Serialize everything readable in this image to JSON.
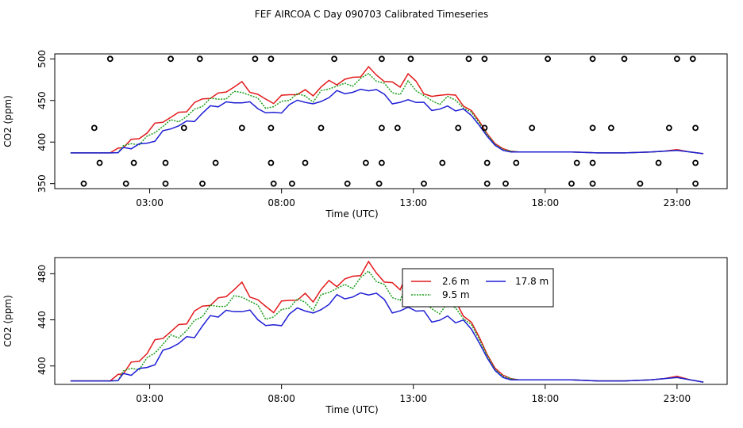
{
  "title": "FEF AIRCOA C  Day 090703  Calibrated Timeseries",
  "series_meta": [
    {
      "name": "2.6 m",
      "color": "#e31a1c"
    },
    {
      "name": "9.5 m",
      "color": "#1a9e1a"
    },
    {
      "name": "17.8 m",
      "color": "#1f1fd6"
    }
  ],
  "chart_data": [
    {
      "type": "line",
      "ylabel": "CO2 (ppm)",
      "xlabel": "Time (UTC)",
      "xlim": [
        -0.6,
        24.9
      ],
      "ylim": [
        344,
        506
      ],
      "x_ticks": [
        3,
        8,
        13,
        18,
        23
      ],
      "x_tick_labels": [
        "03:00",
        "08:00",
        "13:00",
        "18:00",
        "23:00"
      ],
      "y_ticks": [
        350,
        400,
        450,
        500
      ],
      "y_tick_labels": [
        "350",
        "400",
        "450",
        "500"
      ],
      "markers": {
        "name": "flag points",
        "points": [
          [
            1.5,
            500
          ],
          [
            3.8,
            500
          ],
          [
            4.9,
            500
          ],
          [
            7.0,
            500
          ],
          [
            7.6,
            500
          ],
          [
            10.0,
            500
          ],
          [
            11.8,
            500
          ],
          [
            12.9,
            500
          ],
          [
            15.1,
            500
          ],
          [
            15.7,
            500
          ],
          [
            18.1,
            500
          ],
          [
            19.8,
            500
          ],
          [
            21.0,
            500
          ],
          [
            23.0,
            500
          ],
          [
            23.6,
            500
          ],
          [
            0.9,
            417
          ],
          [
            4.3,
            417
          ],
          [
            6.5,
            417
          ],
          [
            7.6,
            417
          ],
          [
            9.5,
            417
          ],
          [
            11.8,
            417
          ],
          [
            12.4,
            417
          ],
          [
            14.7,
            417
          ],
          [
            15.7,
            417
          ],
          [
            17.5,
            417
          ],
          [
            19.8,
            417
          ],
          [
            20.5,
            417
          ],
          [
            22.7,
            417
          ],
          [
            23.7,
            417
          ],
          [
            1.1,
            375
          ],
          [
            2.4,
            375
          ],
          [
            3.6,
            375
          ],
          [
            5.5,
            375
          ],
          [
            7.6,
            375
          ],
          [
            8.9,
            375
          ],
          [
            11.2,
            375
          ],
          [
            11.8,
            375
          ],
          [
            14.1,
            375
          ],
          [
            15.8,
            375
          ],
          [
            16.9,
            375
          ],
          [
            19.2,
            375
          ],
          [
            19.8,
            375
          ],
          [
            22.3,
            375
          ],
          [
            23.7,
            375
          ],
          [
            0.5,
            350
          ],
          [
            2.1,
            350
          ],
          [
            3.6,
            350
          ],
          [
            5.0,
            350
          ],
          [
            7.7,
            350
          ],
          [
            8.4,
            350
          ],
          [
            10.5,
            350
          ],
          [
            11.7,
            350
          ],
          [
            13.4,
            350
          ],
          [
            15.8,
            350
          ],
          [
            16.5,
            350
          ],
          [
            19.0,
            350
          ],
          [
            19.8,
            350
          ],
          [
            21.6,
            350
          ],
          [
            23.7,
            350
          ]
        ]
      }
    },
    {
      "type": "line",
      "ylabel": "CO2 (ppm)",
      "xlabel": "Time (UTC)",
      "xlim": [
        -0.6,
        24.9
      ],
      "ylim": [
        384,
        494
      ],
      "x_ticks": [
        3,
        8,
        13,
        18,
        23
      ],
      "x_tick_labels": [
        "03:00",
        "08:00",
        "13:00",
        "18:00",
        "23:00"
      ],
      "y_ticks": [
        400,
        440,
        480
      ],
      "y_tick_labels": [
        "400",
        "440",
        "480"
      ],
      "legend": {
        "position": "top-right",
        "entries": [
          "2.6 m",
          "9.5 m",
          "17.8 m"
        ]
      }
    }
  ],
  "base_series": {
    "x": [
      0,
      0.5,
      1,
      1.5,
      1.8,
      2,
      2.3,
      2.6,
      2.9,
      3.2,
      3.5,
      3.8,
      4.1,
      4.4,
      4.7,
      5,
      5.3,
      5.6,
      5.9,
      6.2,
      6.5,
      6.8,
      7.1,
      7.4,
      7.7,
      8,
      8.3,
      8.6,
      8.9,
      9.2,
      9.5,
      9.8,
      10.1,
      10.4,
      10.7,
      11,
      11.3,
      11.6,
      11.9,
      12.2,
      12.5,
      12.8,
      13.1,
      13.4,
      13.7,
      14,
      14.3,
      14.6,
      14.9,
      15.2,
      15.5,
      15.8,
      16.1,
      16.4,
      16.7,
      17,
      17.3,
      17.6,
      18,
      19,
      20,
      21,
      22,
      22.5,
      23,
      23.5,
      24
    ],
    "s1": [
      387,
      387,
      387,
      387,
      390,
      395,
      402,
      407,
      412,
      418,
      425,
      430,
      436,
      440,
      444,
      450,
      455,
      458,
      463,
      466,
      468,
      462,
      458,
      452,
      449,
      452,
      456,
      460,
      462,
      458,
      465,
      470,
      472,
      476,
      478,
      480,
      486,
      481,
      476,
      471,
      468,
      480,
      470,
      462,
      455,
      456,
      458,
      452,
      445,
      438,
      425,
      410,
      398,
      392,
      389,
      388,
      388,
      388,
      388,
      388,
      387,
      387,
      388,
      389,
      391,
      388,
      386
    ],
    "s2": [
      387,
      387,
      387,
      387,
      389,
      392,
      397,
      401,
      406,
      412,
      418,
      423,
      428,
      432,
      438,
      444,
      449,
      452,
      456,
      459,
      460,
      455,
      450,
      445,
      443,
      447,
      451,
      455,
      457,
      452,
      459,
      464,
      466,
      469,
      472,
      476,
      480,
      474,
      468,
      462,
      460,
      470,
      462,
      455,
      449,
      450,
      453,
      448,
      442,
      436,
      423,
      409,
      397,
      391,
      389,
      388,
      388,
      388,
      388,
      388,
      387,
      387,
      388,
      389,
      390,
      388,
      386
    ],
    "s3": [
      387,
      387,
      387,
      387,
      388,
      390,
      393,
      396,
      400,
      405,
      410,
      415,
      420,
      424,
      429,
      434,
      440,
      444,
      447,
      449,
      450,
      444,
      440,
      436,
      435,
      439,
      443,
      447,
      450,
      445,
      451,
      455,
      457,
      459,
      461,
      463,
      465,
      460,
      455,
      449,
      447,
      453,
      448,
      443,
      440,
      441,
      443,
      440,
      436,
      432,
      420,
      407,
      396,
      390,
      388,
      388,
      388,
      388,
      388,
      388,
      387,
      387,
      388,
      389,
      390,
      388,
      386
    ]
  }
}
